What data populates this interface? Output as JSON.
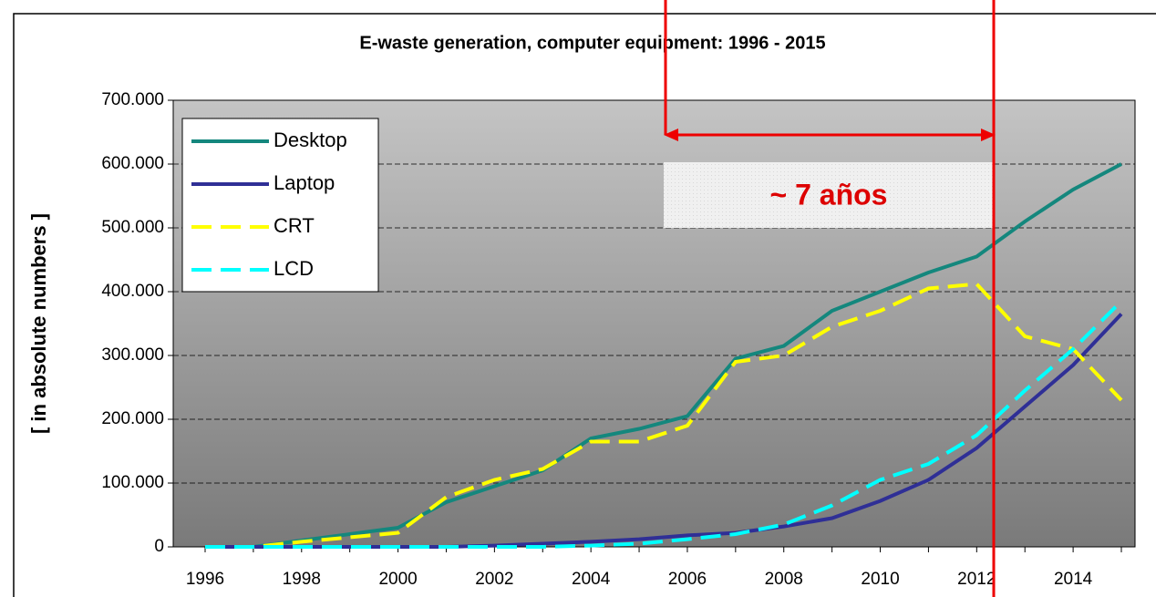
{
  "chart_data": {
    "type": "line",
    "title": "E-waste generation, computer equipment: 1996 - 2015",
    "y_label": "[ in absolute numbers ]",
    "annotation": "~ 7 años",
    "categories": [
      "1996",
      null,
      "1998",
      null,
      "2000",
      null,
      "2002",
      null,
      "2004",
      null,
      "2006",
      null,
      "2008",
      null,
      "2010",
      null,
      "2012",
      null,
      "2014",
      null
    ],
    "series": [
      {
        "name": "Desktop",
        "color": "#14877d",
        "dash": false,
        "values": [
          0,
          0,
          10000,
          20000,
          30000,
          70000,
          95000,
          120000,
          170000,
          185000,
          205000,
          295000,
          315000,
          370000,
          400000,
          430000,
          455000,
          510000,
          560000,
          600000
        ]
      },
      {
        "name": "Laptop",
        "color": "#2f2f96",
        "dash": false,
        "values": [
          0,
          0,
          0,
          0,
          0,
          0,
          2000,
          5000,
          8000,
          12000,
          18000,
          22000,
          32000,
          45000,
          72000,
          105000,
          155000,
          220000,
          285000,
          365000
        ]
      },
      {
        "name": "CRT",
        "color": "#ffff00",
        "dash": true,
        "values": [
          0,
          0,
          8000,
          15000,
          22000,
          78000,
          105000,
          122000,
          165000,
          165000,
          190000,
          290000,
          300000,
          345000,
          370000,
          405000,
          412000,
          330000,
          310000,
          230000
        ]
      },
      {
        "name": "LCD",
        "color": "#00ffff",
        "dash": true,
        "values": [
          0,
          0,
          0,
          0,
          0,
          0,
          0,
          0,
          2000,
          5000,
          12000,
          20000,
          35000,
          65000,
          105000,
          130000,
          175000,
          245000,
          310000,
          385000
        ]
      }
    ],
    "ylim": [
      0,
      700000
    ],
    "yticks": [
      0,
      {
        "value": 100000,
        "label": "100.000"
      },
      {
        "value": 200000,
        "label": "200.000"
      },
      {
        "value": 300000,
        "label": "300.000"
      },
      {
        "value": 400000,
        "label": "400.000"
      },
      {
        "value": 500000,
        "label": "500.000"
      },
      {
        "value": 600000,
        "label": "600.000"
      },
      {
        "value": 700000,
        "label": "700.000"
      }
    ],
    "grid": true,
    "legend": "upper left"
  }
}
